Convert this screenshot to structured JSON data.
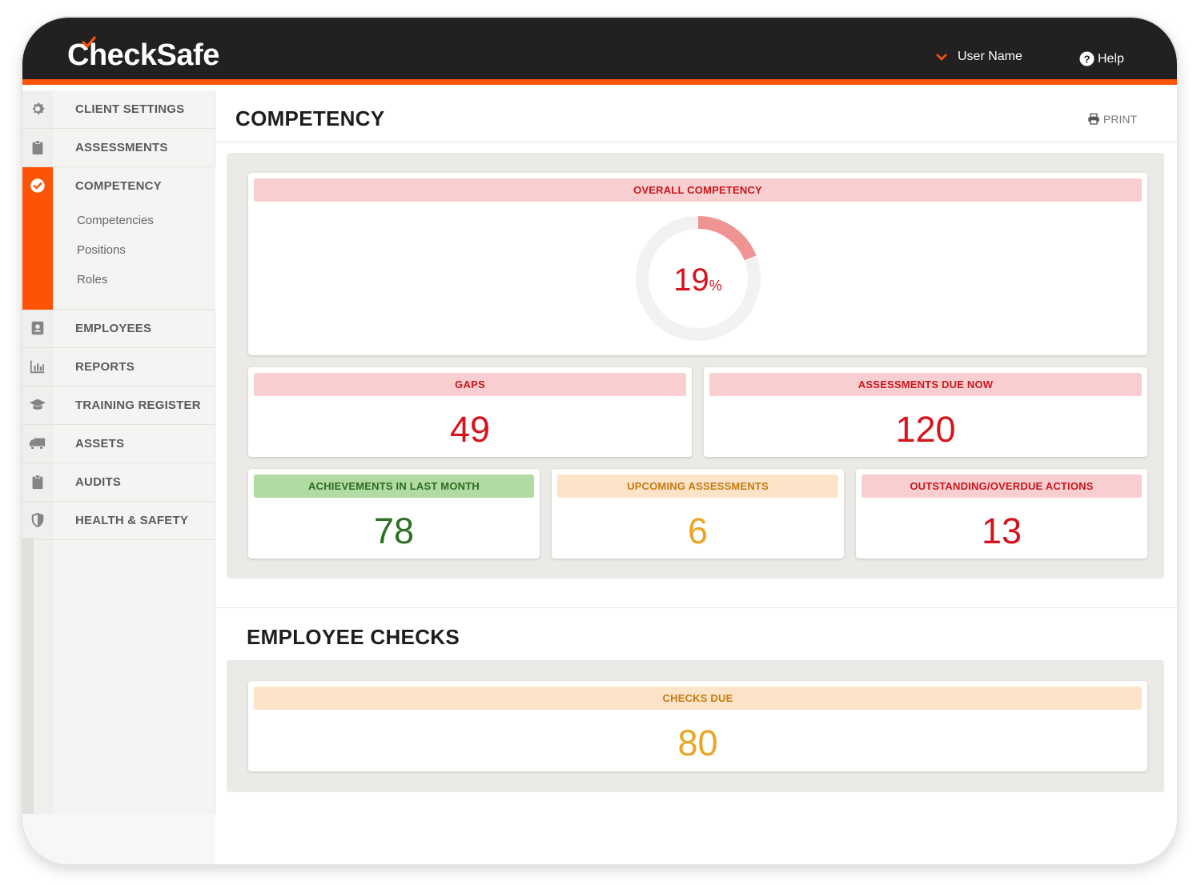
{
  "app": {
    "logo_text": "CheckSafe",
    "user_name": "User Name",
    "help_label": "Help",
    "accent_color": "#fc5305",
    "header_color": "#232021"
  },
  "sidebar": {
    "items": [
      {
        "label": "CLIENT SETTINGS",
        "icon": "gear-icon"
      },
      {
        "label": "ASSESSMENTS",
        "icon": "clipboard-icon"
      },
      {
        "label": "COMPETENCY",
        "icon": "check-circle-icon",
        "active": true,
        "sub_items": [
          "Competencies",
          "Positions",
          "Roles"
        ]
      },
      {
        "label": "EMPLOYEES",
        "icon": "contact-card-icon"
      },
      {
        "label": "REPORTS",
        "icon": "bar-chart-icon"
      },
      {
        "label": "TRAINING REGISTER",
        "icon": "graduation-cap-icon"
      },
      {
        "label": "ASSETS",
        "icon": "truck-icon"
      },
      {
        "label": "AUDITS",
        "icon": "clipboard-icon"
      },
      {
        "label": "HEALTH & SAFETY",
        "icon": "shield-icon"
      }
    ]
  },
  "main": {
    "title": "COMPETENCY",
    "print_label": "PRINT",
    "overall": {
      "label": "OVERALL COMPETENCY",
      "value": "19",
      "unit": "%",
      "fraction": 0.19
    },
    "gaps": {
      "label": "GAPS",
      "value": "49"
    },
    "assessments_due": {
      "label": "ASSESSMENTS DUE NOW",
      "value": "120"
    },
    "achievements": {
      "label": "ACHIEVEMENTS IN LAST MONTH",
      "value": "78"
    },
    "upcoming": {
      "label": "UPCOMING ASSESSMENTS",
      "value": "6"
    },
    "outstanding": {
      "label": "OUTSTANDING/OVERDUE ACTIONS",
      "value": "13"
    },
    "employee_checks": {
      "title": "EMPLOYEE CHECKS",
      "checks_due": {
        "label": "CHECKS DUE",
        "value": "80"
      }
    }
  }
}
